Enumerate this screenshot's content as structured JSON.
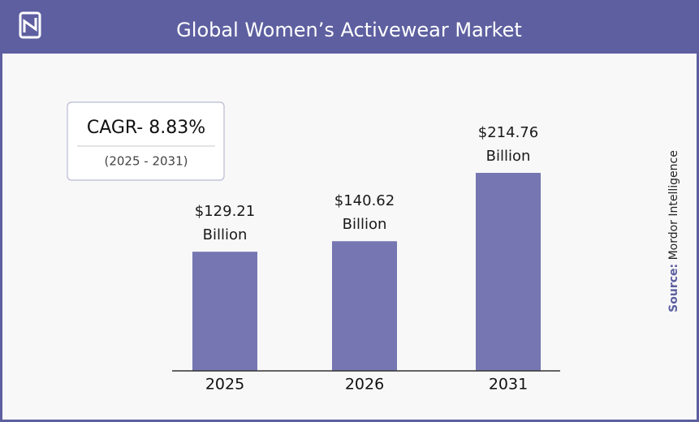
{
  "chart_data": {
    "type": "bar",
    "title": "Global Women’s Activewear Market",
    "categories": [
      "2025",
      "2026",
      "2031"
    ],
    "values": [
      129.21,
      140.62,
      214.76
    ],
    "value_labels": [
      "$129.21 Billion",
      "$140.62 Billion",
      "$214.76 Billion"
    ],
    "color": "#7576b2",
    "cagr": "CAGR- 8.83%",
    "cagr_period": "(2025 - 2031)",
    "source_label": "Source:",
    "source": "Mordor Intelligence"
  }
}
